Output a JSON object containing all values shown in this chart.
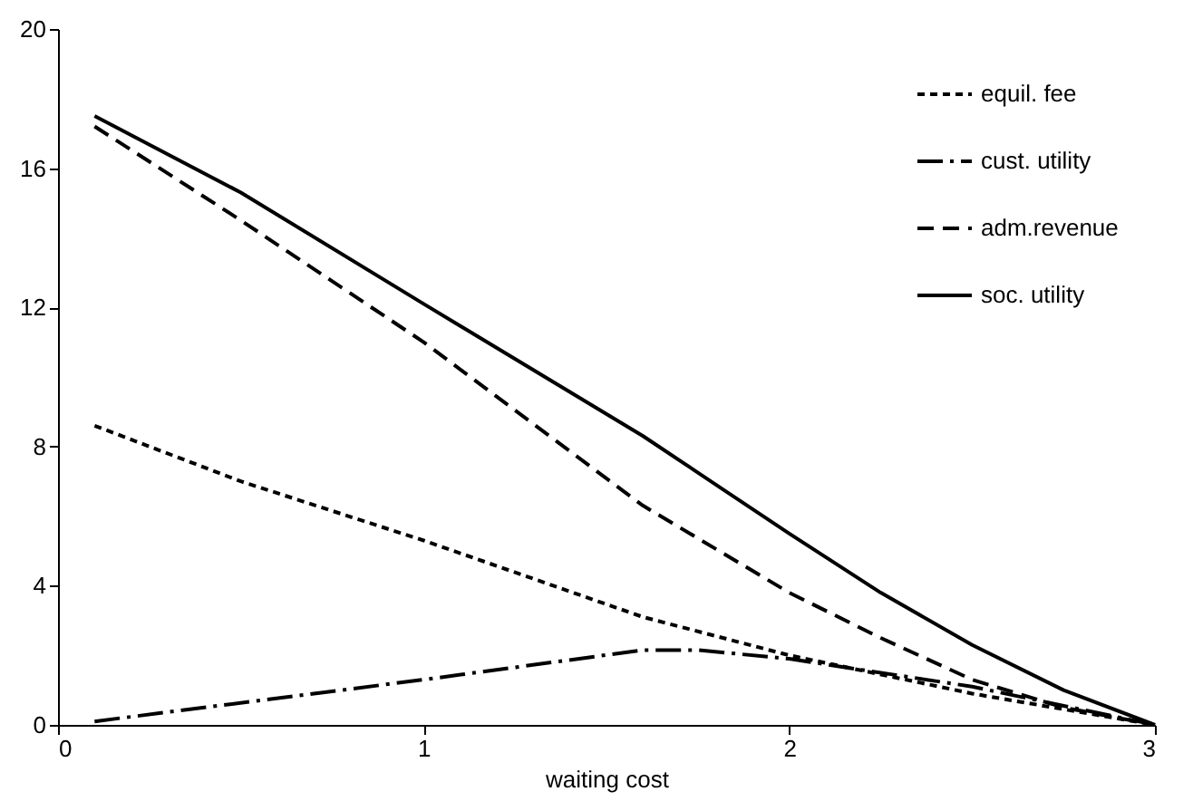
{
  "chart_data": {
    "type": "line",
    "xlabel": "waiting cost",
    "xlim": [
      0,
      3
    ],
    "xticks": [
      0,
      1,
      2,
      3
    ],
    "ylim": [
      0,
      20
    ],
    "yticks": [
      0,
      4,
      8,
      12,
      16,
      20
    ],
    "grid": false,
    "legend": "top right",
    "marker": "none",
    "series": [
      {
        "name": "equil. fee",
        "color": "#000000",
        "line_style": "dotted",
        "x": [
          0.1,
          0.5,
          1,
          1.6,
          2,
          2.5,
          3
        ],
        "values": [
          8.6,
          7.0,
          5.3,
          3.1,
          2.0,
          0.9,
          0
        ]
      },
      {
        "name": "cust. utility",
        "color": "#000000",
        "line_style": "dashdot",
        "x": [
          0.1,
          1,
          1.6,
          1.75,
          2,
          2.5,
          3
        ],
        "values": [
          0.1,
          1.3,
          2.15,
          2.15,
          1.9,
          1.1,
          0
        ]
      },
      {
        "name": "adm.revenue",
        "color": "#000000",
        "line_style": "dashed",
        "x": [
          0.1,
          0.5,
          1,
          1.6,
          2,
          2.25,
          2.5,
          2.75,
          3
        ],
        "values": [
          17.2,
          14.5,
          11.0,
          6.3,
          3.8,
          2.5,
          1.3,
          0.5,
          0
        ]
      },
      {
        "name": "soc. utility",
        "color": "#000000",
        "line_style": "solid",
        "x": [
          0.1,
          0.5,
          1,
          1.6,
          1.8,
          2,
          2.25,
          2.5,
          2.75,
          3
        ],
        "values": [
          17.5,
          15.3,
          12.1,
          8.3,
          6.9,
          5.5,
          3.8,
          2.3,
          1.0,
          0
        ]
      }
    ]
  }
}
